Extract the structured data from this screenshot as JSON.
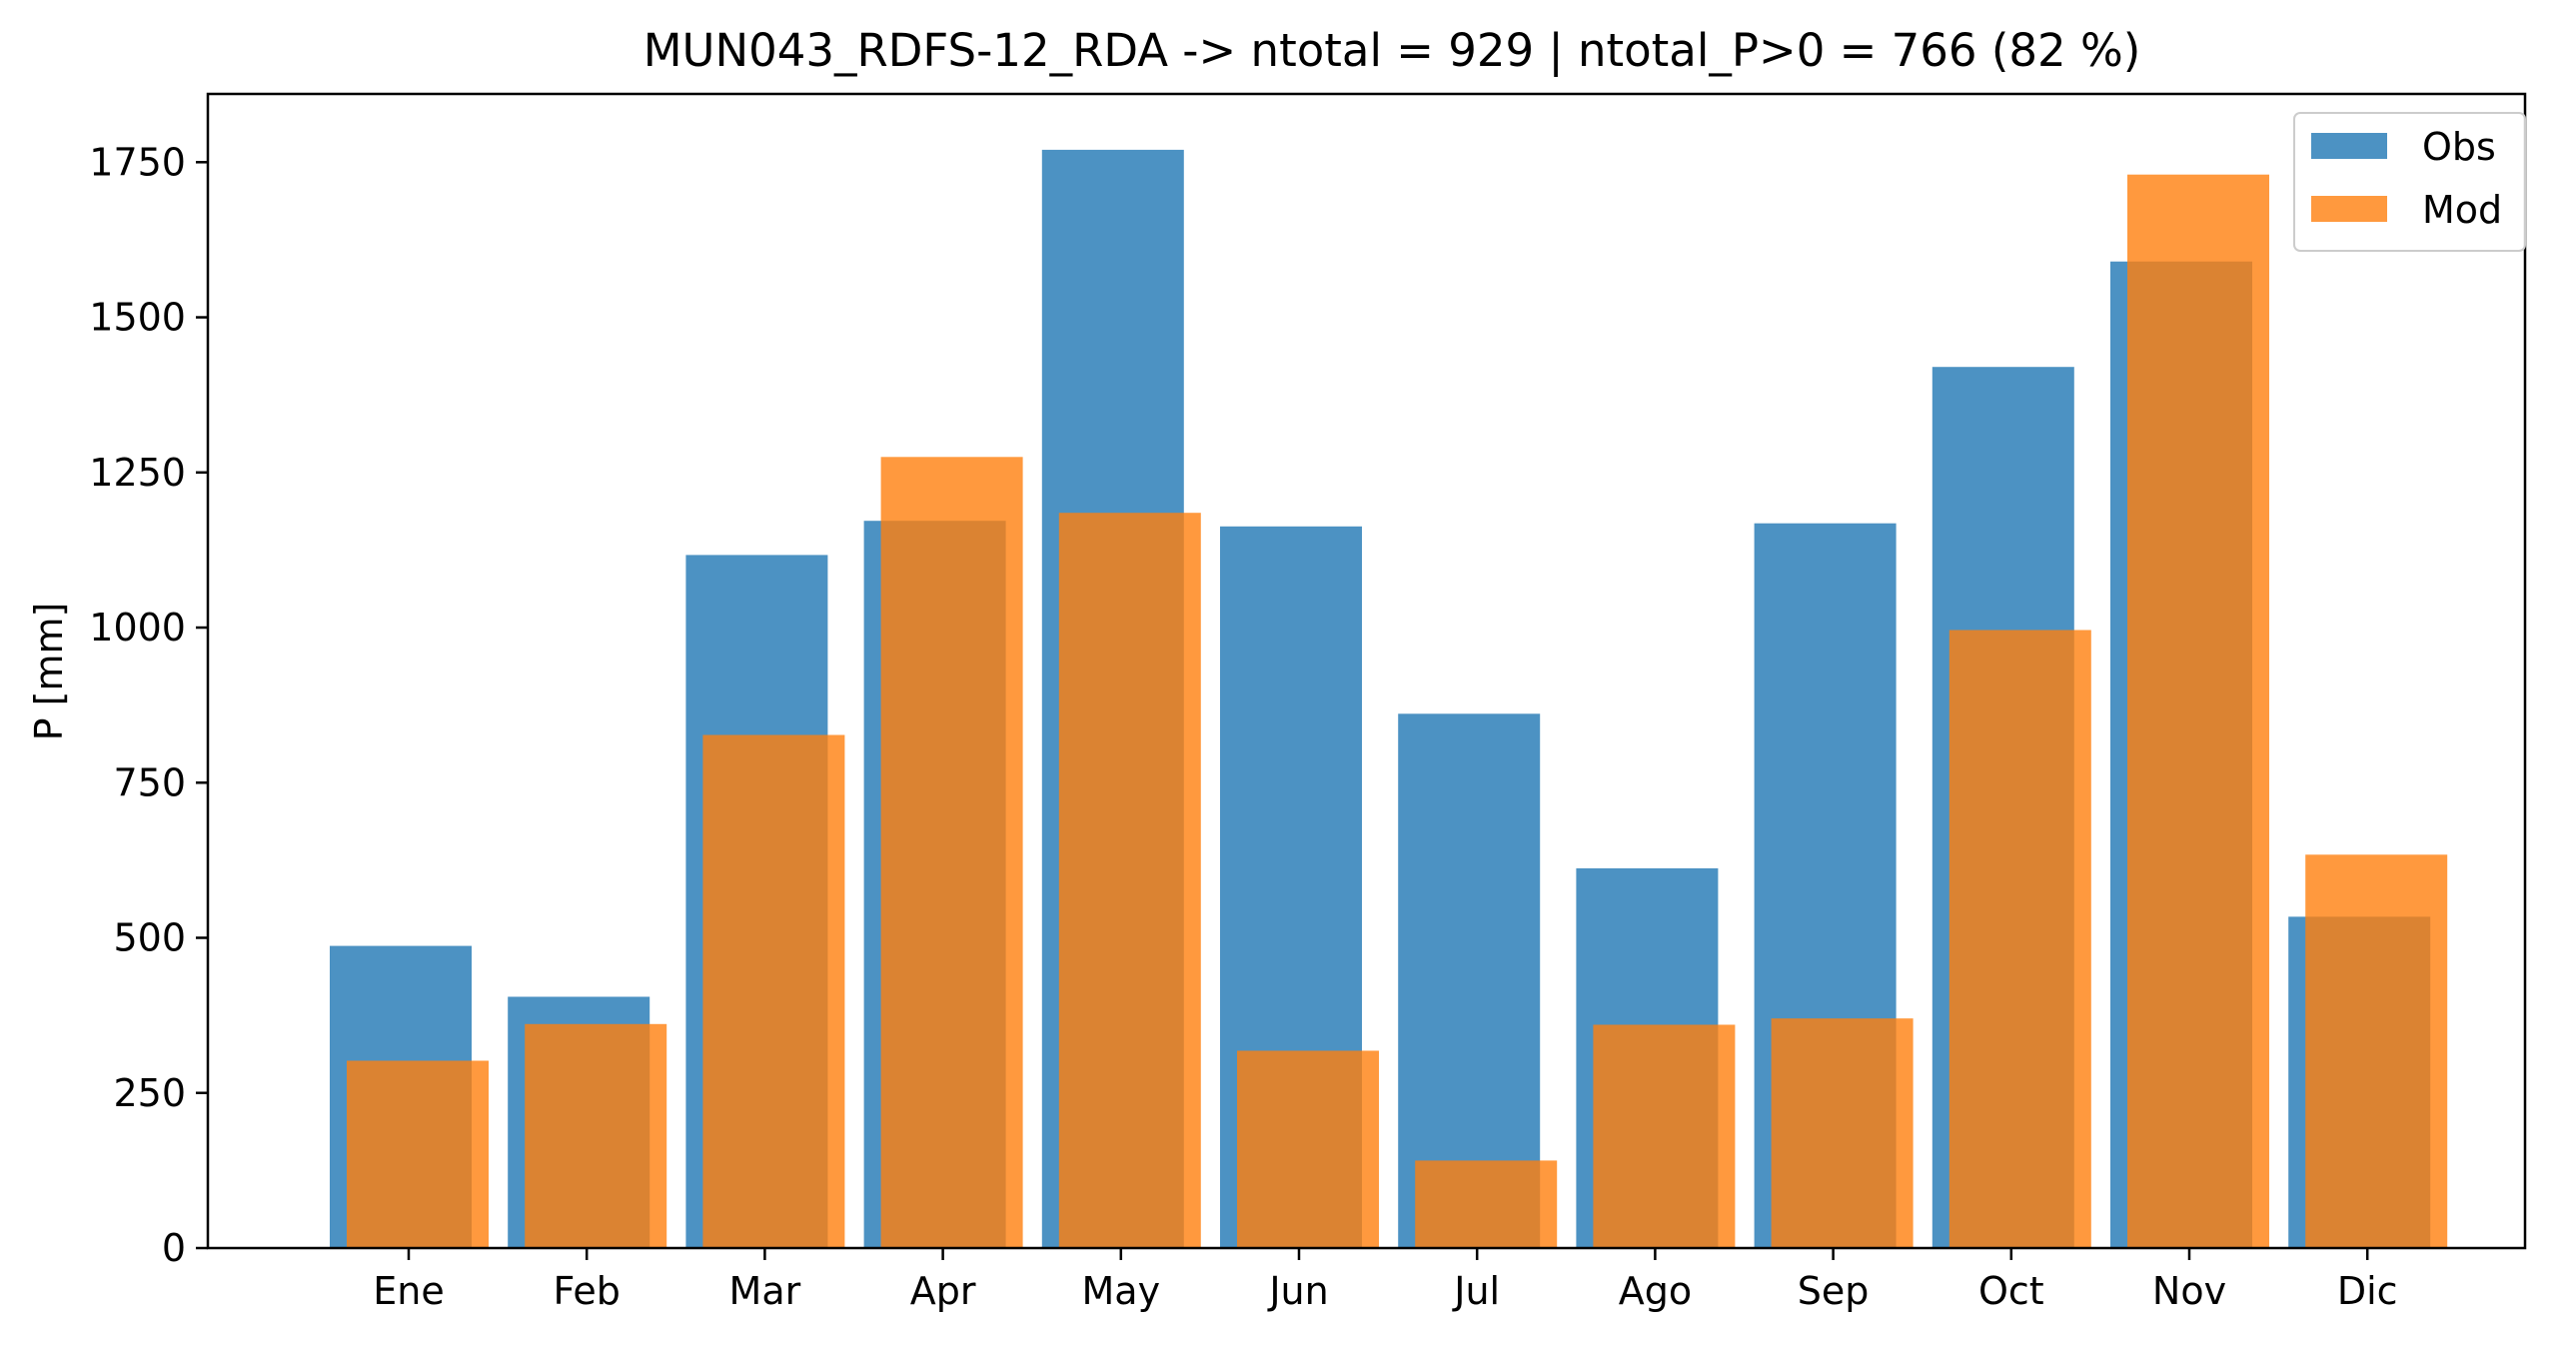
{
  "chart_data": {
    "type": "bar",
    "title": "MUN043_RDFS-12_RDA -> ntotal = 929 | ntotal_P>0 = 766 (82 %)",
    "xlabel": "",
    "ylabel": "P [mm]",
    "ylim": [
      0,
      1860
    ],
    "yticks": [
      0,
      250,
      500,
      750,
      1000,
      1250,
      1500,
      1750
    ],
    "categories": [
      "Ene",
      "Feb",
      "Mar",
      "Apr",
      "May",
      "Jun",
      "Jul",
      "Ago",
      "Sep",
      "Oct",
      "Nov",
      "Dic"
    ],
    "series": [
      {
        "name": "Obs",
        "color": "#1f77b4",
        "values": [
          487,
          405,
          1117,
          1172,
          1770,
          1163,
          861,
          612,
          1168,
          1420,
          1590,
          534
        ]
      },
      {
        "name": "Mod",
        "color": "#ff7f0e",
        "values": [
          302,
          361,
          827,
          1275,
          1185,
          318,
          141,
          360,
          370,
          996,
          1730,
          634
        ]
      }
    ],
    "legend_position": "top-right",
    "grid": false
  }
}
